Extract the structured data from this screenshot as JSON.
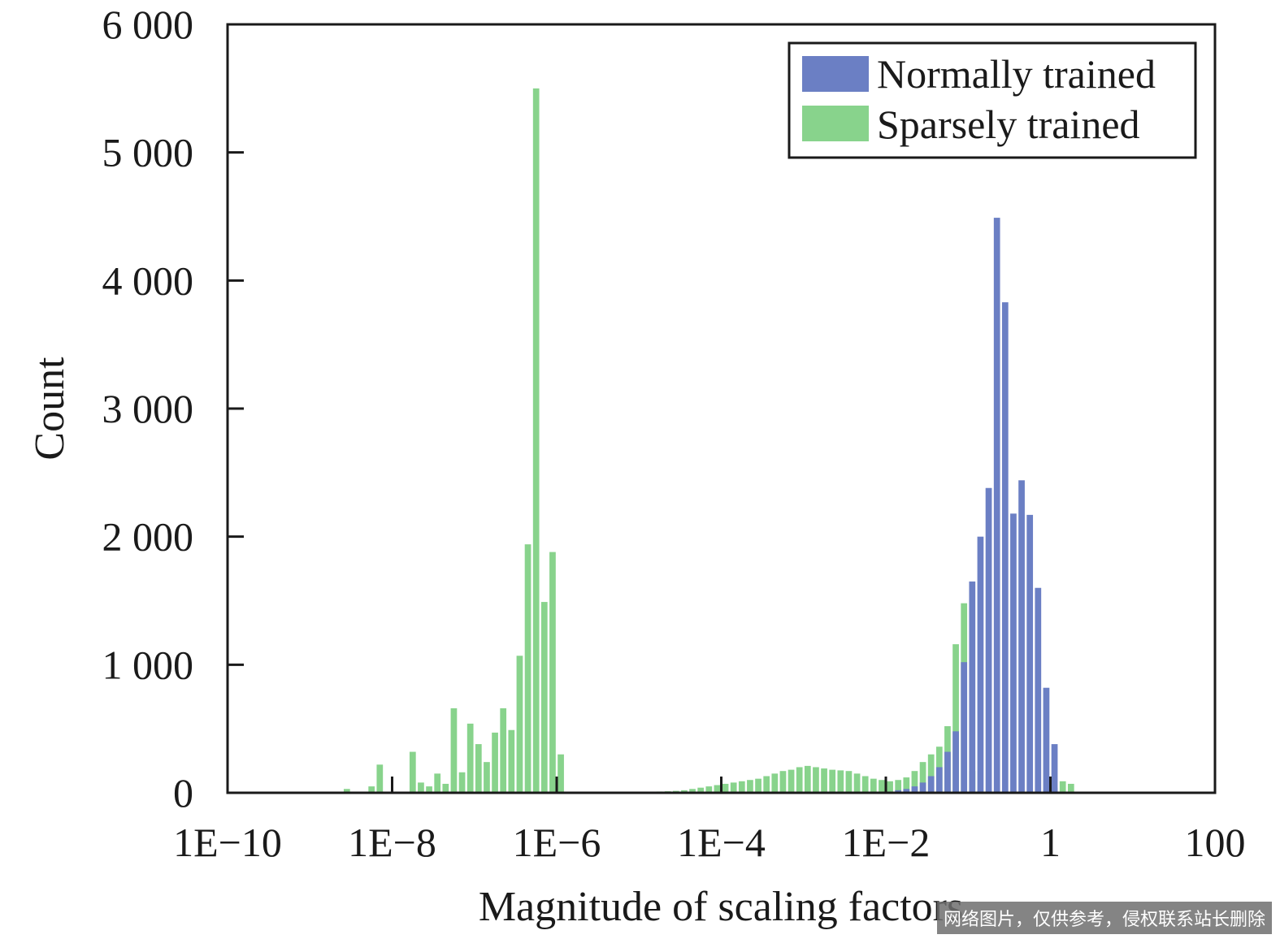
{
  "colors": {
    "normal": "#6b7fc4",
    "sparse": "#88d38c",
    "axis": "#1a1a1a"
  },
  "chart_data": {
    "type": "bar",
    "title": "",
    "xlabel": "Magnitude of scaling factors",
    "ylabel": "Count",
    "x_scale": "log10",
    "xlim_log10": [
      -10,
      2
    ],
    "ylim": [
      0,
      6000
    ],
    "xticks_log10": [
      -10,
      -8,
      -6,
      -4,
      -2,
      0,
      2
    ],
    "xtick_labels": [
      "1E−10",
      "1E−8",
      "1E−6",
      "1E−4",
      "1E−2",
      "1",
      "100"
    ],
    "yticks": [
      0,
      1000,
      2000,
      3000,
      4000,
      5000,
      6000
    ],
    "ytick_labels": [
      "0",
      "1 000",
      "2 000",
      "3 000",
      "4 000",
      "5 000",
      "6 000"
    ],
    "grid": false,
    "legend_position": "top-right",
    "legend": [
      "Normally trained",
      "Sparsely trained"
    ],
    "bin_width_log10": 0.1,
    "series": [
      {
        "name": "Normally trained",
        "color_key": "normal",
        "bins": [
          [
            -1.9,
            20
          ],
          [
            -1.8,
            30
          ],
          [
            -1.7,
            50
          ],
          [
            -1.6,
            80
          ],
          [
            -1.5,
            130
          ],
          [
            -1.4,
            200
          ],
          [
            -1.3,
            320
          ],
          [
            -1.2,
            480
          ],
          [
            -1.1,
            1020
          ],
          [
            -1.0,
            1650
          ],
          [
            -0.9,
            2000
          ],
          [
            -0.8,
            2380
          ],
          [
            -0.7,
            4490
          ],
          [
            -0.6,
            3830
          ],
          [
            -0.5,
            2180
          ],
          [
            -0.4,
            2440
          ],
          [
            -0.3,
            2170
          ],
          [
            -0.2,
            1600
          ],
          [
            -0.1,
            820
          ],
          [
            0.0,
            380
          ]
        ]
      },
      {
        "name": "Sparsely trained",
        "color_key": "sparse",
        "bins": [
          [
            -8.6,
            30
          ],
          [
            -8.3,
            50
          ],
          [
            -8.2,
            220
          ],
          [
            -7.8,
            320
          ],
          [
            -7.7,
            80
          ],
          [
            -7.6,
            50
          ],
          [
            -7.5,
            150
          ],
          [
            -7.4,
            70
          ],
          [
            -7.3,
            660
          ],
          [
            -7.2,
            160
          ],
          [
            -7.1,
            540
          ],
          [
            -7.0,
            380
          ],
          [
            -6.9,
            240
          ],
          [
            -6.8,
            470
          ],
          [
            -6.7,
            660
          ],
          [
            -6.6,
            490
          ],
          [
            -6.5,
            1070
          ],
          [
            -6.4,
            1940
          ],
          [
            -6.3,
            5500
          ],
          [
            -6.2,
            1490
          ],
          [
            -6.1,
            1880
          ],
          [
            -6.0,
            300
          ],
          [
            -4.8,
            10
          ],
          [
            -4.7,
            12
          ],
          [
            -4.6,
            15
          ],
          [
            -4.5,
            20
          ],
          [
            -4.4,
            30
          ],
          [
            -4.3,
            40
          ],
          [
            -4.2,
            50
          ],
          [
            -4.1,
            60
          ],
          [
            -4.0,
            70
          ],
          [
            -3.9,
            80
          ],
          [
            -3.8,
            90
          ],
          [
            -3.7,
            100
          ],
          [
            -3.6,
            110
          ],
          [
            -3.5,
            130
          ],
          [
            -3.4,
            150
          ],
          [
            -3.3,
            170
          ],
          [
            -3.2,
            180
          ],
          [
            -3.1,
            200
          ],
          [
            -3.0,
            210
          ],
          [
            -2.9,
            200
          ],
          [
            -2.8,
            190
          ],
          [
            -2.7,
            180
          ],
          [
            -2.6,
            175
          ],
          [
            -2.5,
            170
          ],
          [
            -2.4,
            150
          ],
          [
            -2.3,
            130
          ],
          [
            -2.2,
            110
          ],
          [
            -2.1,
            100
          ],
          [
            -2.0,
            90
          ],
          [
            -1.9,
            100
          ],
          [
            -1.8,
            120
          ],
          [
            -1.7,
            170
          ],
          [
            -1.6,
            240
          ],
          [
            -1.5,
            300
          ],
          [
            -1.4,
            360
          ],
          [
            -1.3,
            520
          ],
          [
            -1.2,
            1160
          ],
          [
            -1.1,
            1480
          ],
          [
            -1.0,
            170
          ],
          [
            -0.9,
            20
          ],
          [
            0.0,
            40
          ],
          [
            0.1,
            90
          ],
          [
            0.2,
            70
          ]
        ]
      }
    ]
  },
  "watermark_text": "网络图片，仅供参考，侵权联系站长删除"
}
